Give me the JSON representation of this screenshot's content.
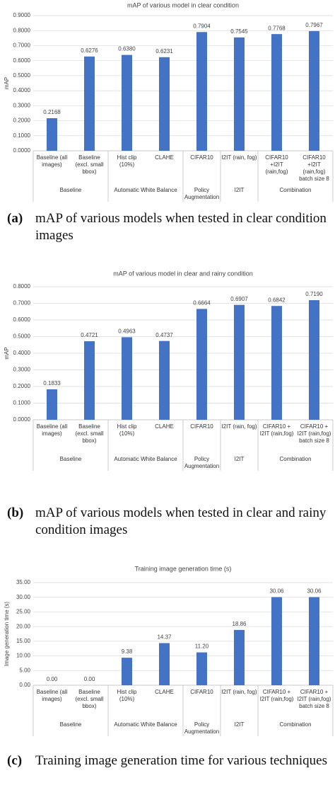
{
  "chart_data": [
    {
      "type": "bar",
      "title": "mAP of various model in clear condition",
      "y_label": "mAP",
      "color": "#4472c4",
      "grid": true,
      "categories": [
        "Baseline (all images)",
        "Baseline (excl. small bbox)",
        "Hist clip (10%)",
        "CLAHE",
        "CIFAR10",
        "I2IT (rain, fog)",
        "CIFAR10 +I2IT (rain,fog)",
        "CIFAR10 +I2IT (rain,fog) batch size 8"
      ],
      "category_groups": [
        "Baseline",
        "Baseline",
        "Automatic White Balance",
        "Automatic White Balance",
        "Policy Augmentation",
        "I2IT",
        "Combination",
        "Combination"
      ],
      "values": [
        0.2168,
        0.6276,
        0.638,
        0.6231,
        0.7904,
        0.7545,
        0.7768,
        0.7967
      ],
      "value_labels": [
        "0.2168",
        "0.6276",
        "0.6380",
        "0.6231",
        "0.7904",
        "0.7545",
        "0.7768",
        "0.7967"
      ],
      "ylim": [
        0,
        0.9
      ],
      "yticks": [
        {
          "value": 0,
          "label": "0.0000"
        },
        {
          "value": 0.1,
          "label": "0.1000"
        },
        {
          "value": 0.2,
          "label": "0.2000"
        },
        {
          "value": 0.3,
          "label": "0.3000"
        },
        {
          "value": 0.4,
          "label": "0.4000"
        },
        {
          "value": 0.5,
          "label": "0.5000"
        },
        {
          "value": 0.6,
          "label": "0.6000"
        },
        {
          "value": 0.7,
          "label": "0.7000"
        },
        {
          "value": 0.8,
          "label": "0.8000"
        },
        {
          "value": 0.9,
          "label": "0.9000"
        }
      ],
      "caption_label": "(a)",
      "caption": "mAP of various models when tested in clear condition images"
    },
    {
      "type": "bar",
      "title": "mAP of various model in clear and rainy condition",
      "y_label": "mAP",
      "color": "#4472c4",
      "grid": true,
      "categories": [
        "Baseline (all images)",
        "Baseline (excl. small bbox)",
        "Hist clip (10%)",
        "CLAHE",
        "CIFAR10",
        "I2IT (rain, fog)",
        "CIFAR10 + I2IT (rain,fog)",
        "CIFAR10 + I2IT (rain,fog) batch size 8"
      ],
      "category_groups": [
        "Baseline",
        "Baseline",
        "Automatic White Balance",
        "Automatic White Balance",
        "Policy Augmentation",
        "I2IT",
        "Combination",
        "Combination"
      ],
      "values": [
        0.1833,
        0.4721,
        0.4963,
        0.4737,
        0.6664,
        0.6907,
        0.6842,
        0.719
      ],
      "value_labels": [
        "0.1833",
        "0.4721",
        "0.4963",
        "0.4737",
        "0.6664",
        "0.6907",
        "0.6842",
        "0.7190"
      ],
      "ylim": [
        0,
        0.8
      ],
      "yticks": [
        {
          "value": 0,
          "label": "0.0000"
        },
        {
          "value": 0.1,
          "label": "0.1000"
        },
        {
          "value": 0.2,
          "label": "0.2000"
        },
        {
          "value": 0.3,
          "label": "0.3000"
        },
        {
          "value": 0.4,
          "label": "0.4000"
        },
        {
          "value": 0.5,
          "label": "0.5000"
        },
        {
          "value": 0.6,
          "label": "0.6000"
        },
        {
          "value": 0.7,
          "label": "0.7000"
        },
        {
          "value": 0.8,
          "label": "0.8000"
        }
      ],
      "caption_label": "(b)",
      "caption": "mAP of various models when tested in clear and rainy condition images"
    },
    {
      "type": "bar",
      "title": "Training image generation time (s)",
      "y_label": "Image generation time (s)",
      "color": "#4472c4",
      "grid": true,
      "categories": [
        "Baseline (all images)",
        "Baseline (excl. small bbox)",
        "Hist clip (10%)",
        "CLAHE",
        "CIFAR10",
        "I2IT (rain, fog)",
        "CIFAR10 + I2IT (rain,fog)",
        "CIFAR10 + I2IT (rain,fog) batch size 8"
      ],
      "category_groups": [
        "Baseline",
        "Baseline",
        "Automatic White Balance",
        "Automatic White Balance",
        "Policy Augmentation",
        "I2IT",
        "Combination",
        "Combination"
      ],
      "values": [
        0,
        0,
        9.38,
        14.37,
        11.2,
        18.86,
        30.06,
        30.06
      ],
      "value_labels": [
        "0.00",
        "0.00",
        "9.38",
        "14.37",
        "11.20",
        "18.86",
        "30.06",
        "30.06"
      ],
      "ylim": [
        0,
        35
      ],
      "yticks": [
        {
          "value": 0,
          "label": "0.00"
        },
        {
          "value": 5,
          "label": "5.00"
        },
        {
          "value": 10,
          "label": "10.00"
        },
        {
          "value": 15,
          "label": "15.00"
        },
        {
          "value": 20,
          "label": "20.00"
        },
        {
          "value": 25,
          "label": "25.00"
        },
        {
          "value": 30,
          "label": "30.00"
        },
        {
          "value": 35,
          "label": "35.00"
        }
      ],
      "caption_label": "(c)",
      "caption": "Training image generation time for various techniques"
    }
  ]
}
